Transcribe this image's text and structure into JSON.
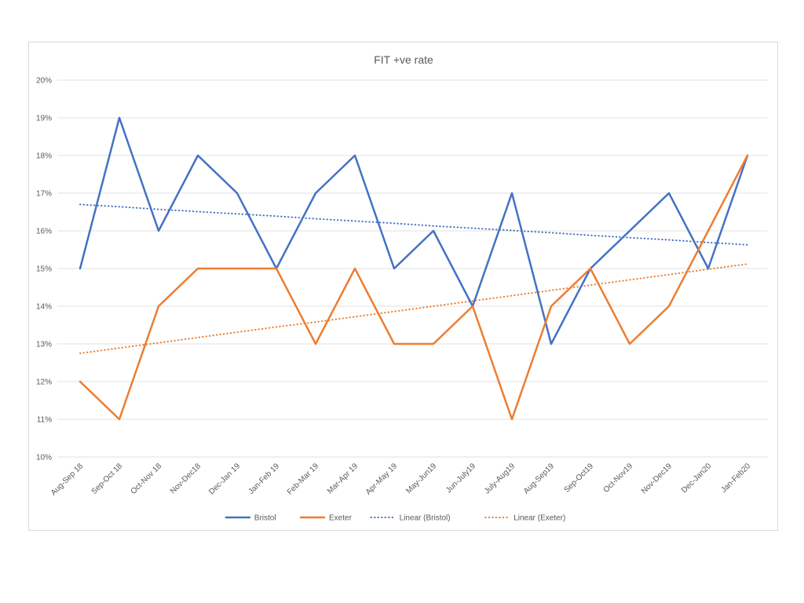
{
  "chart_data": {
    "type": "line",
    "title": "FIT +ve rate",
    "xlabel": "",
    "ylabel": "",
    "categories": [
      "Aug-Sep 18",
      "Sep-Oct 18",
      "Oct-Nov 18",
      "Nov-Dec18",
      "Dec-Jan 19",
      "Jan-Feb 19",
      "Feb-Mar 19",
      "Mar-Apr 19",
      "Apr-May 19",
      "May-Jun19",
      "Jun-July19",
      "July-Aug19",
      "Aug-Sep19",
      "Sep-Oct19",
      "Oct-Nov19",
      "Nov-Dec19",
      "Dec-Jan20",
      "Jan-Feb20"
    ],
    "ylim": [
      10,
      20
    ],
    "yticks": [
      "10%",
      "11%",
      "12%",
      "13%",
      "14%",
      "15%",
      "16%",
      "17%",
      "18%",
      "19%",
      "20%"
    ],
    "y_unit": "%",
    "grid": true,
    "legend_position": "bottom",
    "series": [
      {
        "name": "Bristol",
        "color": "#4472c4",
        "style": "solid",
        "values": [
          15,
          19,
          16,
          18,
          17,
          15,
          17,
          18,
          15,
          16,
          14,
          17,
          13,
          15,
          16,
          17,
          15,
          18
        ]
      },
      {
        "name": "Exeter",
        "color": "#ed7d31",
        "style": "solid",
        "values": [
          12,
          11,
          14,
          15,
          15,
          15,
          13,
          15,
          13,
          13,
          14,
          11,
          14,
          15,
          13,
          14,
          16,
          18
        ]
      },
      {
        "name": "Linear (Bristol)",
        "color": "#4472c4",
        "style": "dotted",
        "trendline_of": "Bristol",
        "values": [
          16.7,
          16.64,
          16.57,
          16.51,
          16.45,
          16.39,
          16.32,
          16.26,
          16.2,
          16.13,
          16.07,
          16.01,
          15.95,
          15.88,
          15.82,
          15.76,
          15.69,
          15.63
        ]
      },
      {
        "name": "Linear (Exeter)",
        "color": "#ed7d31",
        "style": "dotted",
        "trendline_of": "Exeter",
        "values": [
          12.75,
          12.89,
          13.03,
          13.17,
          13.31,
          13.45,
          13.58,
          13.72,
          13.86,
          14.0,
          14.14,
          14.28,
          14.42,
          14.56,
          14.7,
          14.84,
          14.98,
          15.12
        ]
      }
    ]
  }
}
